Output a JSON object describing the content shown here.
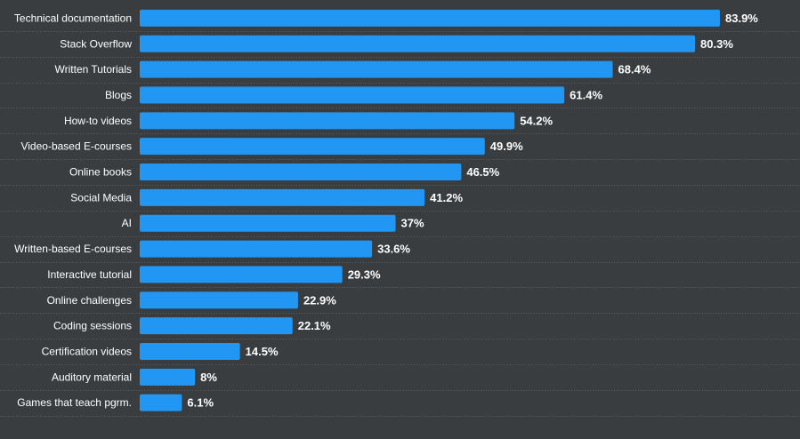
{
  "chart_data": {
    "type": "bar",
    "orientation": "horizontal",
    "title": "",
    "xlabel": "",
    "ylabel": "",
    "xlim": [
      0,
      100
    ],
    "value_suffix": "%",
    "grid": "horizontal dotted separators",
    "legend": "none",
    "bar_color": "#2196f3",
    "background_color": "#3a3d40",
    "categories": [
      "Technical documentation",
      "Stack Overflow",
      "Written Tutorials",
      "Blogs",
      "How-to videos",
      "Video-based E-courses",
      "Online books",
      "Social Media",
      "AI",
      "Written-based E-courses",
      "Interactive tutorial",
      "Online challenges",
      "Coding sessions",
      "Certification videos",
      "Auditory material",
      "Games that teach pgrm."
    ],
    "values": [
      83.9,
      80.3,
      68.4,
      61.4,
      54.2,
      49.9,
      46.5,
      41.2,
      37,
      33.6,
      29.3,
      22.9,
      22.1,
      14.5,
      8,
      6.1
    ],
    "value_labels": [
      "83.9%",
      "80.3%",
      "68.4%",
      "61.4%",
      "54.2%",
      "49.9%",
      "46.5%",
      "41.2%",
      "37%",
      "33.6%",
      "29.3%",
      "22.9%",
      "22.1%",
      "14.5%",
      "8%",
      "6.1%"
    ]
  }
}
